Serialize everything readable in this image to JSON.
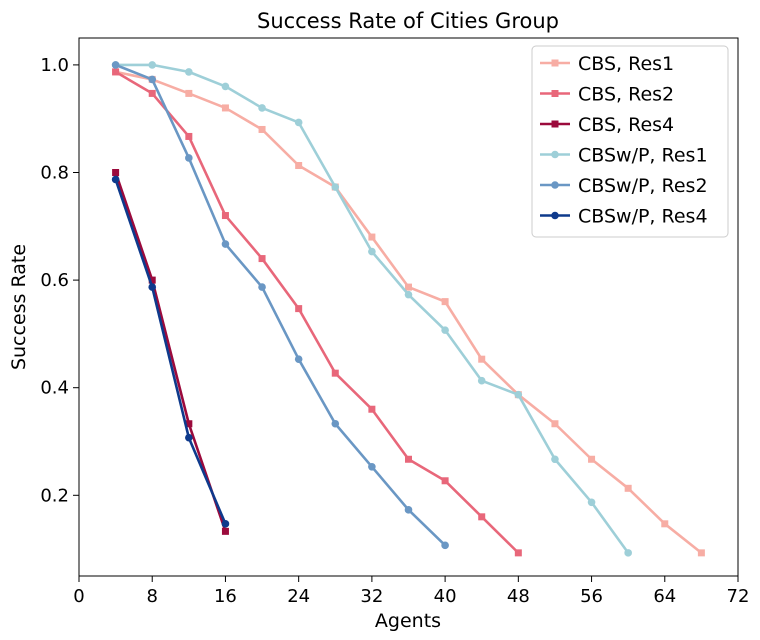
{
  "chart_data": {
    "type": "line",
    "title": "Success Rate of Cities Group",
    "xlabel": "Agents",
    "ylabel": "Success Rate",
    "xlim": [
      0,
      72
    ],
    "ylim": [
      0.05,
      1.05
    ],
    "xticks": [
      0,
      8,
      16,
      24,
      32,
      40,
      48,
      56,
      64,
      72
    ],
    "yticks": [
      0.2,
      0.4,
      0.6,
      0.8,
      1.0
    ],
    "xtick_labels": [
      "0",
      "8",
      "16",
      "24",
      "32",
      "40",
      "48",
      "56",
      "64",
      "72"
    ],
    "ytick_labels": [
      "0.2",
      "0.4",
      "0.6",
      "0.8",
      "1.0"
    ],
    "grid": false,
    "legend_position": "top-right",
    "series": [
      {
        "name": "CBS, Res1",
        "color": "#F7ADA4",
        "marker": "square",
        "x": [
          4,
          8,
          12,
          16,
          20,
          24,
          28,
          32,
          36,
          40,
          44,
          48,
          52,
          56,
          60,
          64,
          68
        ],
        "y": [
          0.987,
          0.973,
          0.947,
          0.92,
          0.88,
          0.813,
          0.773,
          0.68,
          0.587,
          0.56,
          0.453,
          0.387,
          0.333,
          0.267,
          0.213,
          0.147,
          0.093
        ]
      },
      {
        "name": "CBS, Res2",
        "color": "#E8677A",
        "marker": "square",
        "x": [
          4,
          8,
          12,
          16,
          20,
          24,
          28,
          32,
          36,
          40,
          44,
          48
        ],
        "y": [
          0.987,
          0.947,
          0.867,
          0.72,
          0.64,
          0.547,
          0.427,
          0.36,
          0.267,
          0.227,
          0.16,
          0.093
        ]
      },
      {
        "name": "CBS, Res4",
        "color": "#9B0A3C",
        "marker": "square",
        "x": [
          4,
          8,
          12,
          16
        ],
        "y": [
          0.8,
          0.6,
          0.333,
          0.133
        ]
      },
      {
        "name": "CBSw/P, Res1",
        "color": "#9ECFD8",
        "marker": "circle",
        "x": [
          4,
          8,
          12,
          16,
          20,
          24,
          28,
          32,
          36,
          40,
          44,
          48,
          52,
          56,
          60
        ],
        "y": [
          1.0,
          1.0,
          0.987,
          0.96,
          0.92,
          0.893,
          0.773,
          0.653,
          0.573,
          0.507,
          0.413,
          0.387,
          0.267,
          0.187,
          0.093
        ]
      },
      {
        "name": "CBSw/P, Res2",
        "color": "#6A97C4",
        "marker": "circle",
        "x": [
          4,
          8,
          12,
          16,
          20,
          24,
          28,
          32,
          36,
          40
        ],
        "y": [
          1.0,
          0.973,
          0.827,
          0.667,
          0.587,
          0.453,
          0.333,
          0.253,
          0.173,
          0.107
        ]
      },
      {
        "name": "CBSw/P, Res4",
        "color": "#0E3A8C",
        "marker": "circle",
        "x": [
          4,
          8,
          12,
          16
        ],
        "y": [
          0.787,
          0.587,
          0.307,
          0.147
        ]
      }
    ]
  }
}
